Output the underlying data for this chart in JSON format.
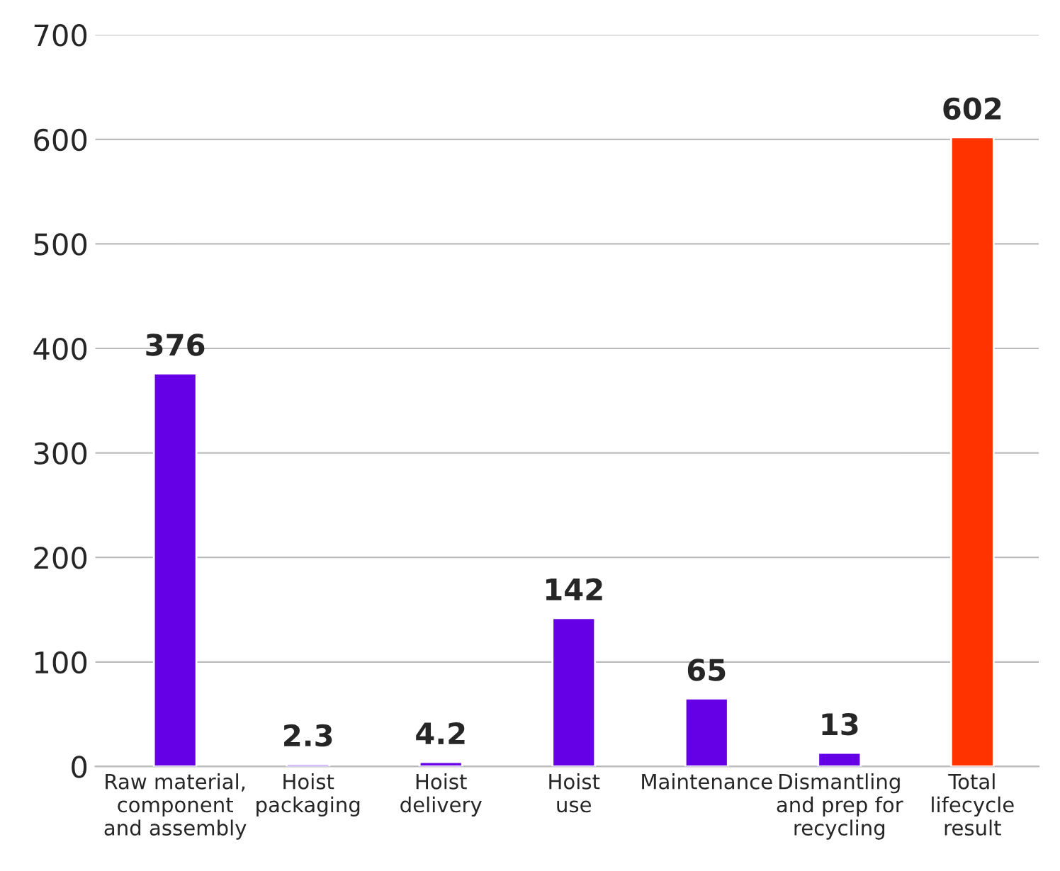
{
  "chart_data": {
    "type": "bar",
    "categories": [
      "Raw material,\ncomponent\nand assembly",
      "Hoist\npackaging",
      "Hoist\ndelivery",
      "Hoist\nuse",
      "Maintenance",
      "Dismantling\nand prep for\nrecycling",
      "Total\nlifecycle\nresult"
    ],
    "values": [
      376,
      2.3,
      4.2,
      142,
      65,
      13,
      602
    ],
    "colors": [
      "#6500e6",
      "#6500e6",
      "#6500e6",
      "#6500e6",
      "#6500e6",
      "#6500e6",
      "#ff3300"
    ],
    "ylim": [
      0,
      700
    ],
    "yticks": [
      0,
      100,
      200,
      300,
      400,
      500,
      600,
      700
    ],
    "grid": "y",
    "data_labels": true
  }
}
